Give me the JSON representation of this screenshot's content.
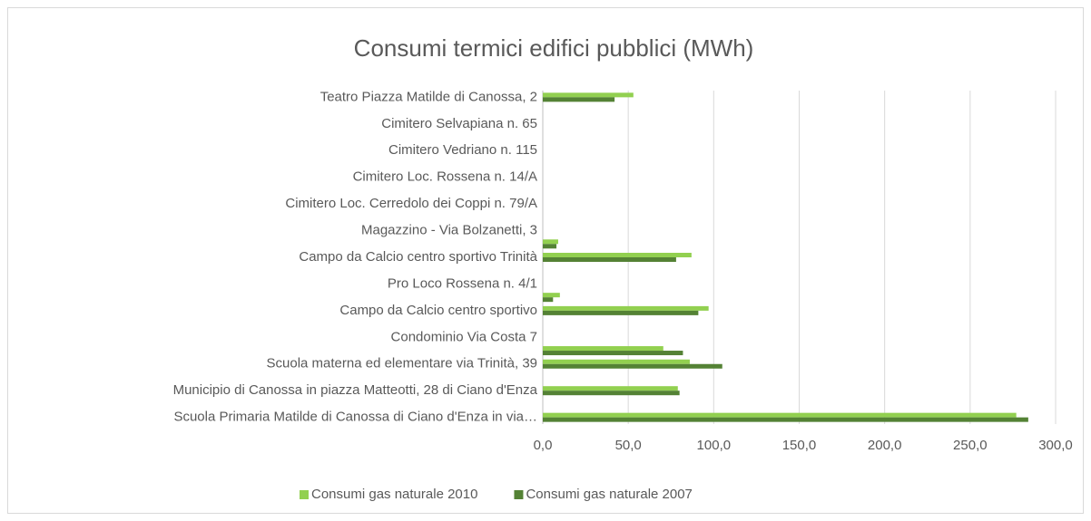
{
  "chart_data": {
    "type": "bar",
    "orientation": "horizontal",
    "title": "Consumi termici edifici pubblici (MWh)",
    "categories": [
      "Scuola Primaria Matilde di Canossa di Ciano d'Enza in via…",
      null,
      "Municipio di Canossa in piazza Matteotti, 28 di Ciano d'Enza",
      null,
      "Scuola materna ed elementare via Trinità, 39",
      null,
      "Condominio Via Costa 7",
      null,
      "Campo da Calcio centro sportivo",
      null,
      "Pro Loco Rossena  n. 4/1",
      null,
      "Campo da Calcio centro sportivo Trinità",
      null,
      "Magazzino - Via Bolzanetti, 3",
      null,
      "Cimitero Loc. Cerredolo dei Coppi n. 79/A",
      null,
      "Cimitero Loc. Rossena n. 14/A",
      null,
      "Cimitero Vedriano n. 115",
      null,
      "Cimitero Selvapiana n. 65",
      null,
      "Teatro Piazza Matilde di Canossa, 2"
    ],
    "series": [
      {
        "name": "Consumi gas naturale 2010",
        "color": "#92d050",
        "values": [
          277,
          null,
          79,
          null,
          86,
          70.5,
          null,
          null,
          97,
          10,
          null,
          null,
          87,
          9,
          null,
          null,
          null,
          null,
          null,
          null,
          null,
          null,
          null,
          null,
          53
        ]
      },
      {
        "name": "Consumi gas naturale 2007",
        "color": "#548235",
        "values": [
          284,
          null,
          80,
          null,
          105,
          82,
          null,
          null,
          91,
          6,
          null,
          null,
          78,
          8,
          null,
          null,
          null,
          null,
          null,
          null,
          null,
          null,
          null,
          null,
          42
        ]
      }
    ],
    "xlim": [
      0,
      300
    ],
    "xticks": [
      {
        "value": 0,
        "label": "0,0"
      },
      {
        "value": 50,
        "label": "50,0"
      },
      {
        "value": 100,
        "label": "100,0"
      },
      {
        "value": 150,
        "label": "150,0"
      },
      {
        "value": 200,
        "label": "200,0"
      },
      {
        "value": 250,
        "label": "250,0"
      },
      {
        "value": 300,
        "label": "300,0"
      }
    ],
    "grid": true,
    "legend": "bottom"
  }
}
